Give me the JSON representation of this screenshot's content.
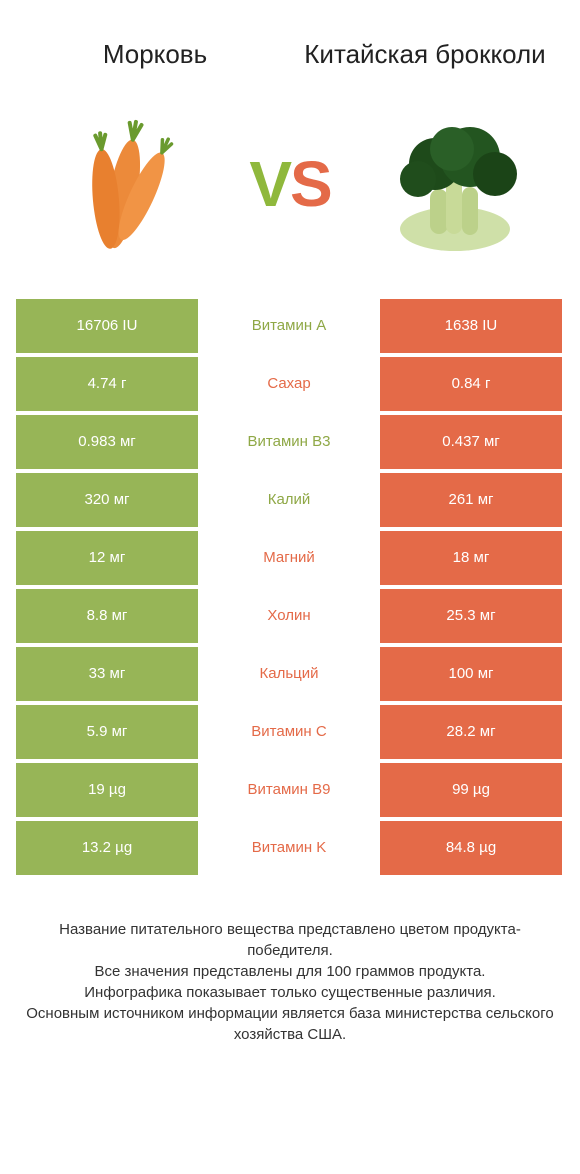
{
  "left_title": "Морковь",
  "right_title": "Китайская брокколи",
  "vs_v": "V",
  "vs_s": "S",
  "colors": {
    "green": "#97b557",
    "orange": "#e46a48",
    "green_text": "#8fa846",
    "orange_text": "#e46a48"
  },
  "rows": [
    {
      "left": "16706 IU",
      "label": "Витамин A",
      "right": "1638 IU",
      "winner": "left"
    },
    {
      "left": "4.74 г",
      "label": "Сахар",
      "right": "0.84 г",
      "winner": "right"
    },
    {
      "left": "0.983 мг",
      "label": "Витамин B3",
      "right": "0.437 мг",
      "winner": "left"
    },
    {
      "left": "320 мг",
      "label": "Калий",
      "right": "261 мг",
      "winner": "left"
    },
    {
      "left": "12 мг",
      "label": "Магний",
      "right": "18 мг",
      "winner": "right"
    },
    {
      "left": "8.8 мг",
      "label": "Холин",
      "right": "25.3 мг",
      "winner": "right"
    },
    {
      "left": "33 мг",
      "label": "Кальций",
      "right": "100 мг",
      "winner": "right"
    },
    {
      "left": "5.9 мг",
      "label": "Витамин C",
      "right": "28.2 мг",
      "winner": "right"
    },
    {
      "left": "19 µg",
      "label": "Витамин B9",
      "right": "99 µg",
      "winner": "right"
    },
    {
      "left": "13.2 µg",
      "label": "Витамин K",
      "right": "84.8 µg",
      "winner": "right"
    }
  ],
  "footer_lines": [
    "Название питательного вещества представлено цветом продукта-победителя.",
    "Все значения представлены для 100 граммов продукта.",
    "Инфографика показывает только существенные различия.",
    "Основным источником информации является база министерства сельского хозяйства США."
  ]
}
